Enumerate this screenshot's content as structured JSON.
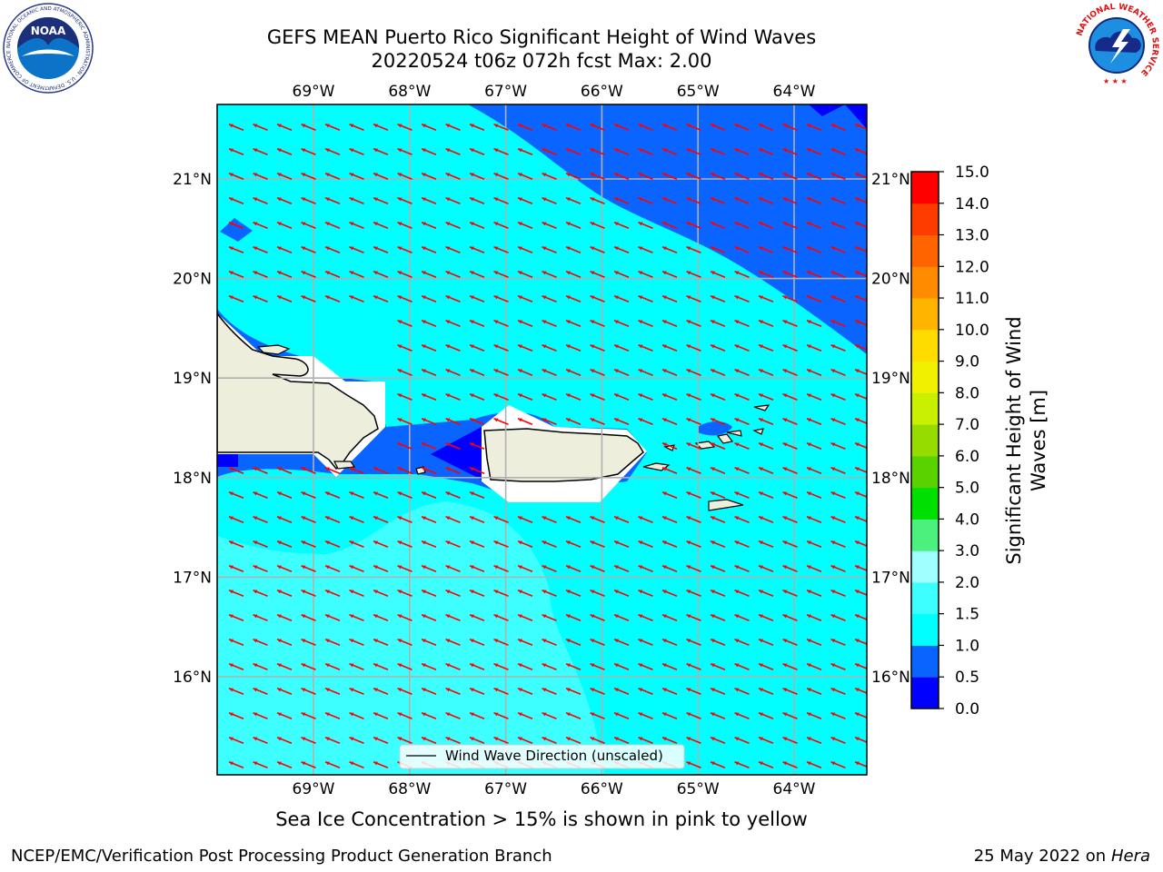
{
  "title_line1": "GEFS MEAN Puerto Rico Significant Height of Wind Waves",
  "title_line2": "20220524 t06z 072h fcst   Max: 2.00",
  "caption": "Sea Ice Concentration > 15% is shown in pink to yellow",
  "footer_left": "NCEP/EMC/Verification Post Processing Product Generation Branch",
  "footer_date": "25 May 2022 on",
  "footer_host": "Hera",
  "legend_label": "Wind Wave Direction (unscaled)",
  "colorbar": {
    "label_line1": "Significant Height of Wind",
    "label_line2": "Waves [m]",
    "ticks": [
      "0.0",
      "0.5",
      "1.0",
      "1.5",
      "2.0",
      "3.0",
      "4.0",
      "5.0",
      "6.0",
      "7.0",
      "8.0",
      "9.0",
      "10.0",
      "11.0",
      "12.0",
      "13.0",
      "14.0",
      "15.0"
    ],
    "colors": [
      "#0000ff",
      "#0a64ff",
      "#00ffff",
      "#3dffff",
      "#a0ffff",
      "#4cf07c",
      "#00e000",
      "#5ad200",
      "#96dc00",
      "#c8f000",
      "#f0f000",
      "#ffdc00",
      "#ffb400",
      "#ff8c00",
      "#ff6400",
      "#ff3c00",
      "#ff0000"
    ]
  },
  "logos": {
    "noaa_text": "NOAA",
    "noaa_ring": "NATIONAL OCEANIC AND ATMOSPHERIC ADMINISTRATION · U.S. DEPARTMENT OF COMMERCE",
    "nws_ring": "NATIONAL WEATHER SERVICE"
  },
  "map": {
    "lon_labels": [
      "69°W",
      "68°W",
      "67°W",
      "66°W",
      "65°W",
      "64°W"
    ],
    "lat_labels": [
      "21°N",
      "20°N",
      "19°N",
      "18°N",
      "17°N",
      "16°N"
    ],
    "colors": {
      "sea_low": "#0a64ff",
      "sea_mid": "#00ffff",
      "sea_high": "#3dffff",
      "sea_min": "#0000ff",
      "land": "#eeeedc",
      "arrow": "#ff0000",
      "grid": "#b0b0b0"
    },
    "arrow_direction": "west-northwest"
  }
}
